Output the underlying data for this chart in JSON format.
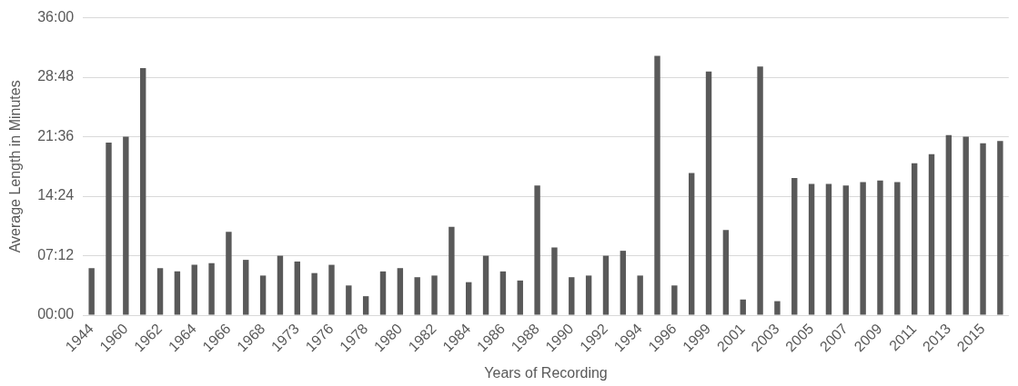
{
  "chart_data": {
    "type": "bar",
    "xlabel": "Years of Recording",
    "ylabel": "Average Length in Minutes",
    "categories": [
      "1944",
      null,
      "1960",
      null,
      "1962",
      null,
      "1964",
      null,
      "1966",
      null,
      "1968",
      null,
      "1973",
      null,
      "1976",
      null,
      "1978",
      null,
      "1980",
      null,
      "1982",
      null,
      "1984",
      null,
      "1986",
      null,
      "1988",
      null,
      "1990",
      null,
      "1992",
      null,
      "1994",
      null,
      "1996",
      null,
      "1999",
      null,
      "2001",
      null,
      "2003",
      null,
      "2005",
      null,
      "2007",
      null,
      "2009",
      null,
      "2011",
      null,
      "2013",
      null,
      "2015",
      null
    ],
    "values": [
      5.7,
      20.9,
      21.6,
      29.9,
      5.7,
      5.3,
      6.1,
      6.3,
      10.1,
      6.7,
      4.8,
      7.2,
      6.5,
      5.1,
      6.1,
      3.6,
      2.3,
      5.3,
      5.7,
      4.6,
      4.8,
      10.7,
      4.0,
      7.2,
      5.3,
      4.2,
      15.7,
      8.2,
      4.6,
      4.8,
      7.2,
      7.8,
      4.8,
      31.4,
      3.6,
      17.2,
      29.5,
      10.3,
      1.9,
      30.1,
      1.7,
      16.6,
      15.9,
      15.9,
      15.7,
      16.1,
      16.3,
      16.1,
      18.4,
      19.5,
      21.8,
      21.6,
      20.8,
      21.1
    ],
    "color": "#595959",
    "ylim": [
      0,
      36
    ],
    "yticks": [
      {
        "value": 0,
        "label": "00:00"
      },
      {
        "value": 7.2,
        "label": "07:12"
      },
      {
        "value": 14.4,
        "label": "14:24"
      },
      {
        "value": 21.6,
        "label": "21:36"
      },
      {
        "value": 28.8,
        "label": "28:48"
      },
      {
        "value": 36,
        "label": "36:00"
      }
    ],
    "grid": "y"
  }
}
